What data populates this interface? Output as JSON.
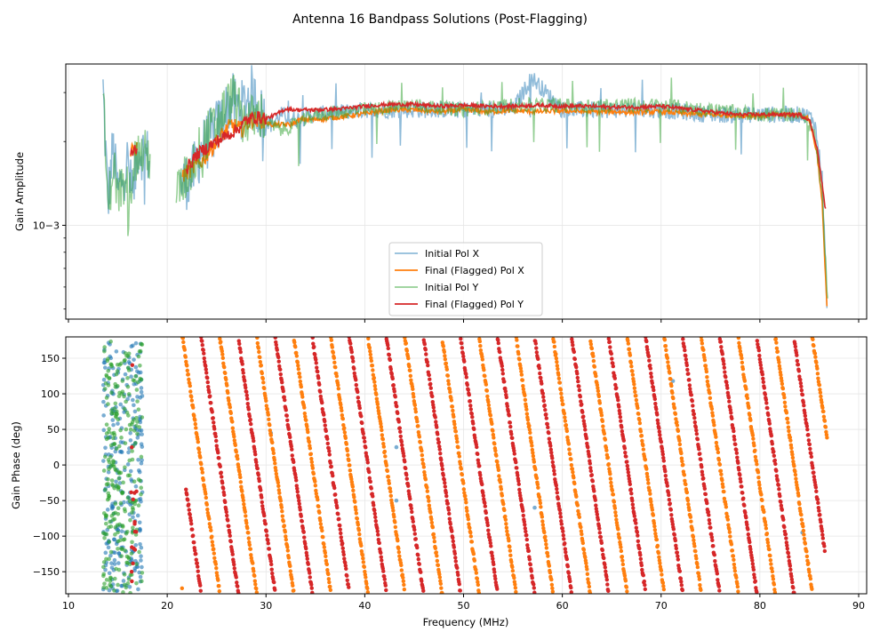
{
  "figure": {
    "title": "Antenna 16 Bandpass Solutions (Post-Flagging)"
  },
  "colors": {
    "initial_x": "#1f77b4",
    "final_x": "#ff7f0e",
    "initial_y": "#2ca02c",
    "final_y": "#d62728",
    "grid": "#e6e6e6"
  },
  "chart_data": [
    {
      "type": "line",
      "panel": "amplitude",
      "xlabel": "",
      "ylabel": "Gain Amplitude",
      "yscale": "log",
      "xlim": [
        9.8,
        90.8
      ],
      "ylim": [
        0.00046,
        0.0038
      ],
      "yticks": [
        {
          "value": 0.001,
          "label": "10−3"
        }
      ],
      "grid": true,
      "legend": {
        "placement": "lower-center",
        "entries": [
          "Initial Pol X",
          "Final (Flagged) Pol X",
          "Initial Pol Y",
          "Final (Flagged) Pol Y"
        ]
      },
      "series": [
        {
          "name": "Initial Pol X",
          "color": "#1f77b4",
          "alpha": 0.5,
          "x": [
            13.5,
            14.0,
            14.5,
            15.0,
            15.5,
            16.0,
            16.5,
            17.0,
            21.5,
            22.5,
            23.5,
            24.5,
            25.5,
            26.5,
            27.5,
            28.5,
            29.5,
            30.5,
            31.5,
            33,
            35,
            40,
            42.9,
            45,
            50,
            55,
            56.9,
            60,
            65,
            70,
            75,
            80,
            83,
            84.5,
            85.5,
            86.3,
            86.8
          ],
          "y": [
            0.0031,
            0.0012,
            0.0019,
            0.0013,
            0.0015,
            0.0017,
            0.0012,
            0.0019,
            0.0014,
            0.0015,
            0.0019,
            0.0021,
            0.0024,
            0.0028,
            0.0026,
            0.003,
            0.0025,
            0.0023,
            0.0025,
            0.0024,
            0.0025,
            0.0026,
            0.0026,
            0.0026,
            0.0026,
            0.0026,
            0.0034,
            0.0026,
            0.0026,
            0.0026,
            0.0025,
            0.0025,
            0.0025,
            0.0025,
            0.0024,
            0.0015,
            0.0005
          ]
        },
        {
          "name": "Final (Flagged) Pol X",
          "color": "#ff7f0e",
          "alpha": 1,
          "x": [
            16.3,
            16.8,
            21.5,
            22.5,
            23.5,
            24.5,
            25.5,
            26.5,
            27.5,
            28.5,
            29.5,
            30.5,
            31.5,
            32.5,
            33.5,
            35,
            37.5,
            40,
            42.5,
            45,
            47.5,
            50,
            52.5,
            55,
            57.5,
            60,
            62.5,
            65,
            67.5,
            70,
            72.5,
            75,
            77.5,
            80,
            82.5,
            84,
            85,
            85.8,
            86.3,
            86.8
          ],
          "y": [
            0.0018,
            0.0019,
            0.0015,
            0.0016,
            0.0017,
            0.0019,
            0.0021,
            0.0023,
            0.0022,
            0.0024,
            0.0024,
            0.0023,
            0.0023,
            0.0023,
            0.0024,
            0.0024,
            0.00245,
            0.00252,
            0.0026,
            0.0026,
            0.00256,
            0.0026,
            0.00256,
            0.00258,
            0.00256,
            0.00258,
            0.00256,
            0.00256,
            0.00255,
            0.00256,
            0.00252,
            0.0025,
            0.00248,
            0.00248,
            0.0025,
            0.0025,
            0.0024,
            0.0018,
            0.0012,
            0.0005
          ]
        },
        {
          "name": "Initial Pol Y",
          "color": "#2ca02c",
          "alpha": 0.5,
          "x": [
            13.5,
            14.0,
            14.5,
            15.0,
            15.5,
            16.0,
            16.5,
            17.0,
            18.0,
            21.0,
            22.0,
            23.0,
            24.0,
            25.0,
            26.0,
            26.8,
            27.5,
            28.5,
            29.5,
            30.5,
            31.5,
            33.0,
            35,
            40,
            45,
            50,
            55,
            60,
            65,
            70,
            75,
            80,
            84,
            85.5,
            86.3,
            86.9
          ],
          "y": [
            0.0031,
            0.0011,
            0.0017,
            0.0013,
            0.0014,
            0.0011,
            0.0016,
            0.0018,
            0.0018,
            0.0013,
            0.0015,
            0.0018,
            0.0021,
            0.0023,
            0.0027,
            0.0029,
            0.0024,
            0.0024,
            0.0025,
            0.0023,
            0.0022,
            0.0023,
            0.0025,
            0.0026,
            0.0027,
            0.0026,
            0.0027,
            0.0027,
            0.0027,
            0.0027,
            0.0026,
            0.0025,
            0.0025,
            0.0022,
            0.0013,
            0.0005
          ]
        },
        {
          "name": "Final (Flagged) Pol Y",
          "color": "#d62728",
          "alpha": 1,
          "x": [
            16.3,
            16.8,
            22.0,
            23.0,
            24.0,
            25.0,
            26.0,
            27.0,
            28.0,
            29.0,
            30.0,
            31.0,
            32.0,
            33.0,
            35,
            37.5,
            40,
            42.3,
            45,
            47.5,
            50,
            52.5,
            55,
            57.5,
            60,
            62.5,
            65,
            67.5,
            70,
            72.5,
            75,
            77.5,
            80,
            82.5,
            84,
            85,
            85.8,
            86.3,
            86.7
          ],
          "y": [
            0.0018,
            0.0019,
            0.0016,
            0.0018,
            0.0019,
            0.002,
            0.0021,
            0.0022,
            0.00238,
            0.00245,
            0.00242,
            0.0025,
            0.00262,
            0.0026,
            0.0026,
            0.00262,
            0.00268,
            0.00272,
            0.00272,
            0.00268,
            0.0027,
            0.00268,
            0.00268,
            0.0027,
            0.00268,
            0.00268,
            0.00266,
            0.00266,
            0.00268,
            0.00262,
            0.00256,
            0.0025,
            0.0025,
            0.0025,
            0.0025,
            0.0024,
            0.0019,
            0.0014,
            0.0011
          ]
        }
      ]
    },
    {
      "type": "scatter",
      "panel": "phase",
      "xlabel": "Frequency (MHz)",
      "ylabel": "Gain Phase (deg)",
      "xlim": [
        9.8,
        90.8
      ],
      "ylim": [
        -181,
        180
      ],
      "xticks": [
        10,
        20,
        30,
        40,
        50,
        60,
        70,
        80,
        90
      ],
      "yticks": [
        -150,
        -100,
        -50,
        0,
        50,
        100,
        150
      ],
      "grid": true,
      "series": [
        {
          "name": "Initial Pol X",
          "color": "#1f77b4",
          "alpha": 0.6,
          "x_range": [
            13.5,
            87.0
          ],
          "note_points": [
            [
              30.5,
              45
            ],
            [
              43.2,
              25
            ],
            [
              43.2,
              -50
            ],
            [
              57.2,
              -60
            ],
            [
              71.2,
              118
            ],
            [
              84.3,
              -95
            ]
          ]
        },
        {
          "name": "Final (Flagged) Pol X",
          "color": "#ff7f0e",
          "alpha": 1,
          "x_range": [
            16.4,
            86.8
          ],
          "phase_slope_deg_per_mhz": -96,
          "phase_wraps": true
        },
        {
          "name": "Initial Pol Y",
          "color": "#2ca02c",
          "alpha": 0.6,
          "x_range": [
            13.5,
            87.0
          ]
        },
        {
          "name": "Final (Flagged) Pol Y",
          "color": "#d62728",
          "alpha": 1,
          "x_range": [
            16.4,
            86.6
          ],
          "phase_slope_deg_per_mhz": -96,
          "phase_wraps": true
        }
      ]
    }
  ]
}
